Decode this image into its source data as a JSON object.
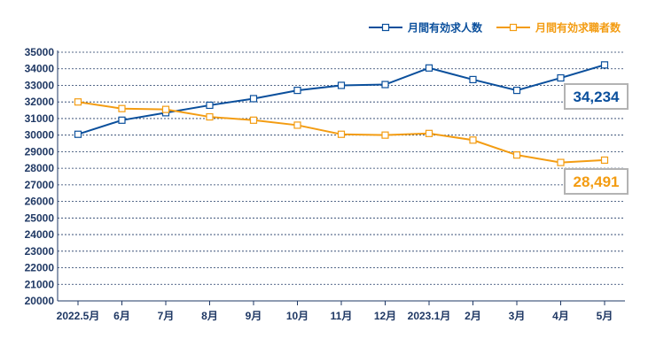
{
  "chart_data": {
    "type": "line",
    "categories": [
      "2022.5月",
      "6月",
      "7月",
      "8月",
      "9月",
      "10月",
      "11月",
      "12月",
      "2023.1月",
      "2月",
      "3月",
      "4月",
      "5月"
    ],
    "ylim": [
      20000,
      35000
    ],
    "yticks": [
      "20000",
      "21000",
      "22000",
      "23000",
      "24000",
      "25000",
      "26000",
      "27000",
      "28000",
      "29000",
      "30000",
      "31000",
      "32000",
      "33000",
      "34000",
      "35000"
    ],
    "grid": true,
    "legend_position": "top-right",
    "series": [
      {
        "name": "月間有効求人数",
        "color": "#0a4f9c",
        "values": [
          30050,
          30900,
          31350,
          31800,
          32200,
          32700,
          33000,
          33050,
          34050,
          33350,
          32700,
          33450,
          34234
        ],
        "callout": "34,234"
      },
      {
        "name": "月間有効求職者数",
        "color": "#f39c12",
        "values": [
          32000,
          31600,
          31550,
          31100,
          30900,
          30600,
          30050,
          30000,
          30100,
          29700,
          28800,
          28350,
          28491
        ],
        "callout": "28,491"
      }
    ]
  }
}
